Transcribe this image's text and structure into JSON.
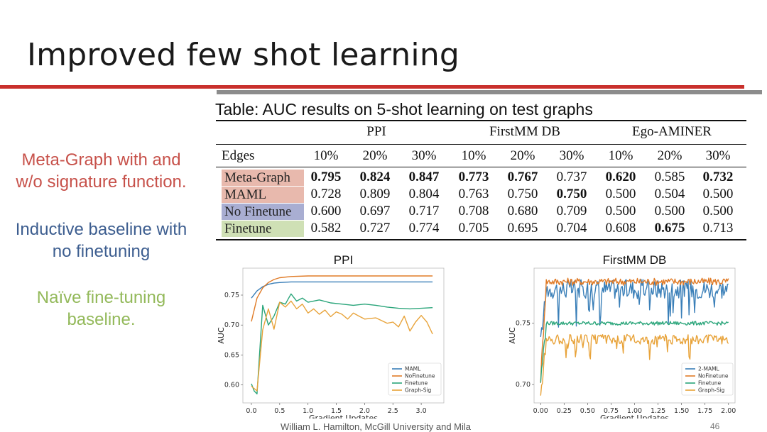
{
  "slide": {
    "title": "Improved few shot learning",
    "footer": "William L. Hamilton, McGill University and Mila",
    "page_number": "46"
  },
  "notes": [
    {
      "text": "Meta-Graph with and\nw/o signature function.",
      "color": "#c7514a"
    },
    {
      "text": "Inductive baseline with\nno finetuning",
      "color": "#3c5d8f"
    },
    {
      "text": "Naïve fine-tuning\nbaseline.",
      "color": "#93b95a"
    }
  ],
  "table": {
    "caption": "Table: AUC results on 5-shot learning on test graphs",
    "groups": [
      "PPI",
      "FirstMM DB",
      "Ego-AMINER"
    ],
    "edges_label": "Edges",
    "columns": [
      "10%",
      "20%",
      "30%",
      "10%",
      "20%",
      "30%",
      "10%",
      "20%",
      "30%"
    ],
    "rows": [
      {
        "label": "Meta-Graph",
        "highlight": "#e8b9ad",
        "values": [
          "0.795",
          "0.824",
          "0.847",
          "0.773",
          "0.767",
          "0.737",
          "0.620",
          "0.585",
          "0.732"
        ],
        "bold": [
          true,
          true,
          true,
          true,
          true,
          false,
          true,
          false,
          true
        ]
      },
      {
        "label": "MAML",
        "highlight": "#e8b9ad",
        "values": [
          "0.728",
          "0.809",
          "0.804",
          "0.763",
          "0.750",
          "0.750",
          "0.500",
          "0.504",
          "0.500"
        ],
        "bold": [
          false,
          false,
          false,
          false,
          false,
          true,
          false,
          false,
          false
        ]
      },
      {
        "label": "No Finetune",
        "highlight": "#a9aed2",
        "values": [
          "0.600",
          "0.697",
          "0.717",
          "0.708",
          "0.680",
          "0.709",
          "0.500",
          "0.500",
          "0.500"
        ],
        "bold": [
          false,
          false,
          false,
          false,
          false,
          false,
          false,
          false,
          false
        ]
      },
      {
        "label": "Finetune",
        "highlight": "#cfe0b5",
        "values": [
          "0.582",
          "0.727",
          "0.774",
          "0.705",
          "0.695",
          "0.704",
          "0.608",
          "0.675",
          "0.713"
        ],
        "bold": [
          false,
          false,
          false,
          false,
          false,
          false,
          false,
          true,
          false
        ]
      }
    ]
  },
  "chart_data": [
    {
      "type": "line",
      "title": "PPI",
      "xlabel": "Gradient Updates",
      "ylabel": "AUC",
      "xlim": [
        -0.15,
        3.4
      ],
      "ylim": [
        0.57,
        0.795
      ],
      "xticks": [
        "0.0",
        "0.5",
        "1.0",
        "1.5",
        "2.0",
        "2.5",
        "3.0"
      ],
      "xtick_values": [
        0,
        0.5,
        1.0,
        1.5,
        2.0,
        2.5,
        3.0
      ],
      "yticks": [
        "0.60",
        "0.65",
        "0.70",
        "0.75"
      ],
      "ytick_values": [
        0.6,
        0.65,
        0.7,
        0.75
      ],
      "legend_position": "lower-right",
      "grid": false,
      "series": [
        {
          "name": "MAML",
          "color": "#3a7fb8",
          "x": [
            0,
            0.1,
            0.2,
            0.3,
            0.4,
            0.5,
            0.7,
            1.0,
            1.5,
            2.0,
            2.5,
            3.0,
            3.2
          ],
          "y": [
            0.745,
            0.757,
            0.764,
            0.768,
            0.77,
            0.771,
            0.772,
            0.772,
            0.772,
            0.772,
            0.772,
            0.772,
            0.772
          ]
        },
        {
          "name": "NoFinetune",
          "color": "#e07b27",
          "x": [
            0,
            0.1,
            0.2,
            0.3,
            0.4,
            0.5,
            0.7,
            1.0,
            1.5,
            2.0,
            2.5,
            3.0,
            3.2
          ],
          "y": [
            0.706,
            0.745,
            0.762,
            0.771,
            0.776,
            0.779,
            0.781,
            0.782,
            0.782,
            0.782,
            0.782,
            0.782,
            0.782
          ]
        },
        {
          "name": "Finetune",
          "color": "#2aa57a",
          "x": [
            0,
            0.05,
            0.1,
            0.2,
            0.3,
            0.4,
            0.5,
            0.6,
            0.7,
            0.8,
            0.9,
            1.0,
            1.2,
            1.4,
            1.6,
            1.8,
            2.0,
            2.2,
            2.4,
            2.6,
            2.8,
            3.0,
            3.2
          ],
          "y": [
            0.602,
            0.59,
            0.585,
            0.733,
            0.7,
            0.715,
            0.738,
            0.735,
            0.752,
            0.74,
            0.745,
            0.738,
            0.742,
            0.737,
            0.735,
            0.733,
            0.735,
            0.733,
            0.73,
            0.728,
            0.727,
            0.728,
            0.729
          ]
        },
        {
          "name": "Graph-Sig",
          "color": "#e8a33a",
          "x": [
            0,
            0.1,
            0.2,
            0.3,
            0.4,
            0.5,
            0.6,
            0.7,
            0.8,
            0.9,
            1.0,
            1.1,
            1.2,
            1.3,
            1.4,
            1.5,
            1.6,
            1.7,
            1.8,
            1.9,
            2.0,
            2.2,
            2.4,
            2.5,
            2.6,
            2.7,
            2.8,
            2.9,
            3.0,
            3.1,
            3.2
          ],
          "y": [
            0.598,
            0.59,
            0.692,
            0.727,
            0.693,
            0.738,
            0.73,
            0.74,
            0.727,
            0.735,
            0.72,
            0.727,
            0.718,
            0.725,
            0.714,
            0.722,
            0.718,
            0.71,
            0.72,
            0.715,
            0.71,
            0.712,
            0.703,
            0.705,
            0.697,
            0.715,
            0.69,
            0.705,
            0.716,
            0.705,
            0.685
          ]
        }
      ]
    },
    {
      "type": "line",
      "title": "FirstMM DB",
      "xlabel": "Gradient Updates",
      "ylabel": "AUC",
      "xlim": [
        -0.07,
        2.07
      ],
      "ylim": [
        0.685,
        0.795
      ],
      "xticks": [
        "0.00",
        "0.25",
        "0.50",
        "0.75",
        "1.00",
        "1.25",
        "1.50",
        "1.75",
        "2.00"
      ],
      "xtick_values": [
        0,
        0.25,
        0.5,
        0.75,
        1.0,
        1.25,
        1.5,
        1.75,
        2.0
      ],
      "yticks": [
        "0.70",
        "0.75"
      ],
      "ytick_values": [
        0.7,
        0.75
      ],
      "legend_position": "lower-right",
      "grid": false,
      "series": [
        {
          "name": "2-MAML",
          "color": "#3a7fb8",
          "noise": 0.008,
          "base": 0.778,
          "start": 0.735
        },
        {
          "name": "NoFinetune",
          "color": "#e07b27",
          "noise": 0.003,
          "base": 0.784,
          "start": 0.705
        },
        {
          "name": "Finetune",
          "color": "#2aa57a",
          "noise": 0.0015,
          "base": 0.75,
          "start": 0.703
        },
        {
          "name": "Graph-Sig",
          "color": "#e8a33a",
          "noise": 0.004,
          "base": 0.737,
          "start": 0.69
        }
      ]
    }
  ]
}
